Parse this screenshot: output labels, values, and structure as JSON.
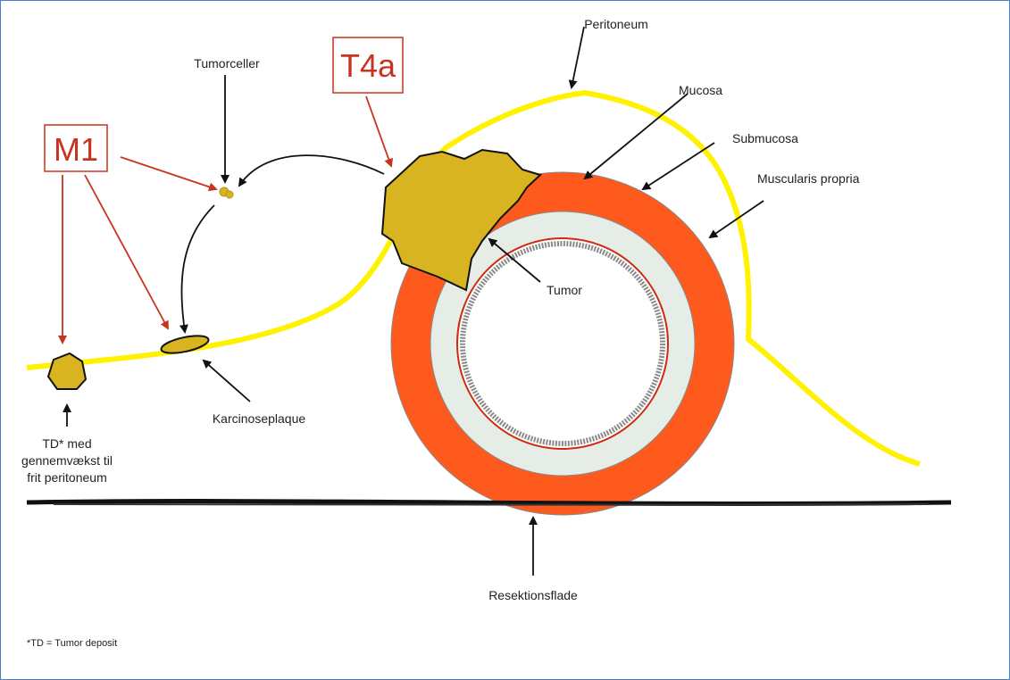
{
  "labels": {
    "peritoneum": "Peritoneum",
    "mucosa": "Mucosa",
    "submucosa": "Submucosa",
    "muscularis": "Muscularis propria",
    "tumor": "Tumor",
    "tumorceller": "Tumorceller",
    "t4a": "T4a",
    "m1": "M1",
    "karcinoseplaque": "Karcinoseplaque",
    "td": [
      "TD* med",
      "gennemvækst til",
      "frit peritoneum"
    ],
    "resektionsflade": "Resektionsflade",
    "footnote": "*TD =  Tumor deposit"
  }
}
